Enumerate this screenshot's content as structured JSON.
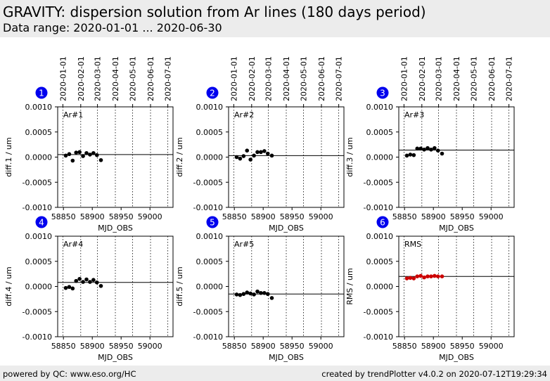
{
  "header": {
    "title": "GRAVITY: dispersion solution from Ar lines (180 days period)",
    "subtitle": "Data range: 2020-01-01 ... 2020-06-30"
  },
  "footer": {
    "left": "powered by QC: www.eso.org/HC",
    "right": "created by trendPlotter v4.0.2 on 2020-07-12T19:29:34"
  },
  "top_axis_dates": [
    "2020-01-01",
    "2020-02-01",
    "2020-03-01",
    "2020-04-01",
    "2020-05-01",
    "2020-06-01",
    "2020-07-01"
  ],
  "top_axis_mjd": [
    58849,
    58880,
    58909,
    58940,
    58970,
    59001,
    59031
  ],
  "colors": {
    "badge": "#0000ee",
    "normal_point": "#000000",
    "rms_point": "#cc0000"
  },
  "chart_data": [
    {
      "type": "scatter",
      "badge": "1",
      "label": "Ar#1",
      "ylabel": "diff.1 / um",
      "xlabel": "MJD_OBS",
      "xlim": [
        58840,
        59040
      ],
      "ylim": [
        -0.001,
        0.001
      ],
      "xticks": [
        58850,
        58900,
        58950,
        59000
      ],
      "xtick_labels": [
        "58850",
        "58900",
        "58950",
        "59000"
      ],
      "yticks": [
        0.001,
        0.0005,
        0,
        -0.0005,
        -0.001
      ],
      "ytick_labels": [
        "0.0010",
        "0.0005",
        "0.0000",
        "-0.0005",
        "-0.0010"
      ],
      "ref_line": 5e-05,
      "point_color": "#000000",
      "x": [
        58854,
        58860,
        58866,
        58872,
        58878,
        58884,
        58890,
        58896,
        58902,
        58908,
        58915
      ],
      "y": [
        3e-05,
        6e-05,
        -7e-05,
        9e-05,
        0.0001,
        2e-05,
        8e-05,
        5e-05,
        8e-05,
        4e-05,
        -6e-05
      ]
    },
    {
      "type": "scatter",
      "badge": "2",
      "label": "Ar#2",
      "ylabel": "diff.2 / um",
      "xlabel": "MJD_OBS",
      "xlim": [
        58840,
        59040
      ],
      "ylim": [
        -0.001,
        0.001
      ],
      "xticks": [
        58850,
        58900,
        58950,
        59000
      ],
      "xtick_labels": [
        "58850",
        "58900",
        "58950",
        "59000"
      ],
      "yticks": [
        0.001,
        0.0005,
        0,
        -0.0005,
        -0.001
      ],
      "ytick_labels": [
        "0.0010",
        "0.0005",
        "0.0000",
        "-0.0005",
        "-0.0010"
      ],
      "ref_line": 3e-05,
      "point_color": "#000000",
      "x": [
        58854,
        58860,
        58866,
        58872,
        58878,
        58884,
        58890,
        58896,
        58902,
        58908,
        58915
      ],
      "y": [
        0.0,
        -3e-05,
        2e-05,
        0.00013,
        -5e-05,
        3e-05,
        0.0001,
        0.0001,
        0.00012,
        7e-05,
        3e-05
      ]
    },
    {
      "type": "scatter",
      "badge": "3",
      "label": "Ar#3",
      "ylabel": "diff.3 / um",
      "xlabel": "MJD_OBS",
      "xlim": [
        58840,
        59040
      ],
      "ylim": [
        -0.001,
        0.001
      ],
      "xticks": [
        58850,
        58900,
        58950,
        59000
      ],
      "xtick_labels": [
        "58850",
        "58900",
        "58950",
        "59000"
      ],
      "yticks": [
        0.001,
        0.0005,
        0,
        -0.0005,
        -0.001
      ],
      "ytick_labels": [
        "0.0010",
        "0.0005",
        "0.0000",
        "-0.0005",
        "-0.0010"
      ],
      "ref_line": 0.00014,
      "point_color": "#000000",
      "x": [
        58854,
        58860,
        58866,
        58872,
        58878,
        58884,
        58890,
        58896,
        58902,
        58908,
        58915
      ],
      "y": [
        3e-05,
        5e-05,
        4e-05,
        0.00017,
        0.00017,
        0.00015,
        0.00018,
        0.00015,
        0.00018,
        0.00013,
        7e-05
      ]
    },
    {
      "type": "scatter",
      "badge": "4",
      "label": "Ar#4",
      "ylabel": "diff.4 / um",
      "xlabel": "MJD_OBS",
      "xlim": [
        58840,
        59040
      ],
      "ylim": [
        -0.001,
        0.001
      ],
      "xticks": [
        58850,
        58900,
        58950,
        59000
      ],
      "xtick_labels": [
        "58850",
        "58900",
        "58950",
        "59000"
      ],
      "yticks": [
        0.001,
        0.0005,
        0,
        -0.0005,
        -0.001
      ],
      "ytick_labels": [
        "0.0010",
        "0.0005",
        "0.0000",
        "-0.0005",
        "-0.0010"
      ],
      "ref_line": 8e-05,
      "point_color": "#000000",
      "x": [
        58854,
        58860,
        58866,
        58872,
        58878,
        58884,
        58890,
        58896,
        58902,
        58908,
        58915
      ],
      "y": [
        -3e-05,
        -1e-05,
        -4e-05,
        0.00011,
        0.00015,
        9e-05,
        0.00014,
        9e-05,
        0.00013,
        8e-05,
        1e-05
      ]
    },
    {
      "type": "scatter",
      "badge": "5",
      "label": "Ar#5",
      "ylabel": "diff.5 / um",
      "xlabel": "MJD_OBS",
      "xlim": [
        58840,
        59040
      ],
      "ylim": [
        -0.001,
        0.001
      ],
      "xticks": [
        58850,
        58900,
        58950,
        59000
      ],
      "xtick_labels": [
        "58850",
        "58900",
        "58950",
        "59000"
      ],
      "yticks": [
        0.001,
        0.0005,
        0,
        -0.0005,
        -0.001
      ],
      "ytick_labels": [
        "0.0010",
        "0.0005",
        "0.0000",
        "-0.0005",
        "-0.0010"
      ],
      "ref_line": -0.00015,
      "point_color": "#000000",
      "x": [
        58854,
        58860,
        58866,
        58872,
        58878,
        58884,
        58890,
        58896,
        58902,
        58908,
        58915
      ],
      "y": [
        -0.00016,
        -0.00017,
        -0.00015,
        -0.00012,
        -0.00014,
        -0.00016,
        -0.0001,
        -0.00013,
        -0.00013,
        -0.00015,
        -0.00023
      ]
    },
    {
      "type": "scatter",
      "badge": "6",
      "label": "RMS",
      "ylabel": "RMS / um",
      "xlabel": "MJD_OBS",
      "xlim": [
        58840,
        59040
      ],
      "ylim": [
        -0.001,
        0.001
      ],
      "xticks": [
        58850,
        58900,
        58950,
        59000
      ],
      "xtick_labels": [
        "58850",
        "58900",
        "58950",
        "59000"
      ],
      "yticks": [
        0.001,
        0.0005,
        0,
        -0.0005,
        -0.001
      ],
      "ytick_labels": [
        "0.0010",
        "0.0005",
        "0.0000",
        "-0.0005",
        "-0.0010"
      ],
      "ref_line": 0.0002,
      "point_color": "#cc0000",
      "x": [
        58854,
        58860,
        58866,
        58872,
        58878,
        58884,
        58890,
        58896,
        58902,
        58908,
        58915
      ],
      "y": [
        0.00016,
        0.00017,
        0.00016,
        0.0002,
        0.00021,
        0.00018,
        0.0002,
        0.0002,
        0.00021,
        0.0002,
        0.0002
      ]
    }
  ]
}
